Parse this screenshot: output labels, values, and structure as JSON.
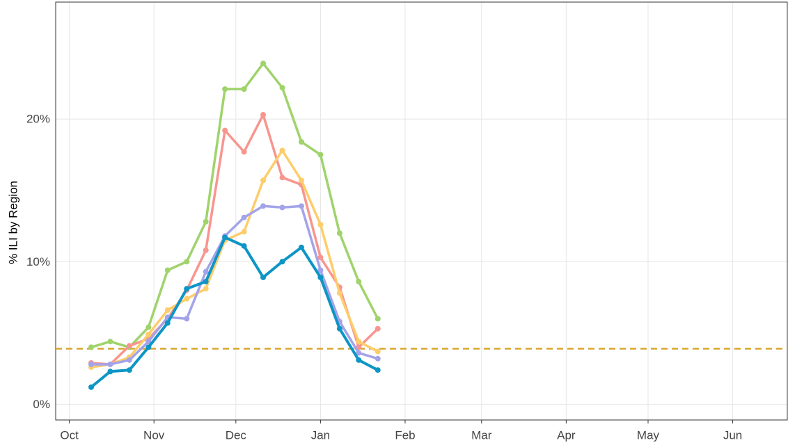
{
  "chart_data": {
    "type": "line",
    "y_label": "% ILI by Region",
    "x": [
      8,
      15,
      22,
      29,
      36,
      43,
      50,
      57,
      64,
      71,
      78,
      85,
      92,
      99,
      106,
      113
    ],
    "xlim": [
      -5,
      263
    ],
    "xticks": [
      {
        "value": 0,
        "label": "Oct"
      },
      {
        "value": 31,
        "label": "Nov"
      },
      {
        "value": 61,
        "label": "Dec"
      },
      {
        "value": 92,
        "label": "Jan"
      },
      {
        "value": 123,
        "label": "Feb"
      },
      {
        "value": 151,
        "label": "Mar"
      },
      {
        "value": 182,
        "label": "Apr"
      },
      {
        "value": 212,
        "label": "May"
      },
      {
        "value": 243,
        "label": "Jun"
      }
    ],
    "ylim": [
      -1.1,
      28.2
    ],
    "yticks": [
      {
        "value": 0,
        "label": "0%"
      },
      {
        "value": 10,
        "label": "10%"
      },
      {
        "value": 20,
        "label": "20%"
      }
    ],
    "grid": true,
    "baseline": {
      "value": 3.9,
      "color": "#d9a62b",
      "dashed": true
    },
    "series": [
      {
        "color": "#9fd36b",
        "values": [
          4.0,
          4.4,
          4.0,
          5.4,
          9.4,
          10.0,
          12.8,
          22.1,
          22.1,
          23.9,
          22.2,
          18.4,
          17.5,
          12.0,
          8.6,
          6.0
        ]
      },
      {
        "color": "#f8958f",
        "values": [
          2.9,
          2.8,
          4.1,
          4.6,
          6.0,
          8.0,
          10.8,
          19.2,
          17.7,
          20.3,
          15.9,
          15.4,
          10.3,
          8.2,
          4.0,
          5.3
        ]
      },
      {
        "color": "#fdcd6b",
        "values": [
          2.6,
          2.8,
          3.3,
          4.9,
          6.6,
          7.4,
          8.1,
          11.5,
          12.1,
          15.7,
          17.8,
          15.7,
          12.6,
          7.8,
          4.4,
          3.7
        ]
      },
      {
        "color": "#a3a3ea",
        "values": [
          2.8,
          2.8,
          3.1,
          4.4,
          6.1,
          6.0,
          9.3,
          11.8,
          13.1,
          13.9,
          13.8,
          13.9,
          9.4,
          5.8,
          3.6,
          3.2
        ]
      },
      {
        "color": "#0d95c5",
        "values": [
          1.2,
          2.3,
          2.4,
          4.0,
          5.7,
          8.1,
          8.6,
          11.7,
          11.1,
          8.9,
          10.0,
          11.0,
          8.9,
          5.3,
          3.1,
          2.4
        ]
      }
    ]
  }
}
